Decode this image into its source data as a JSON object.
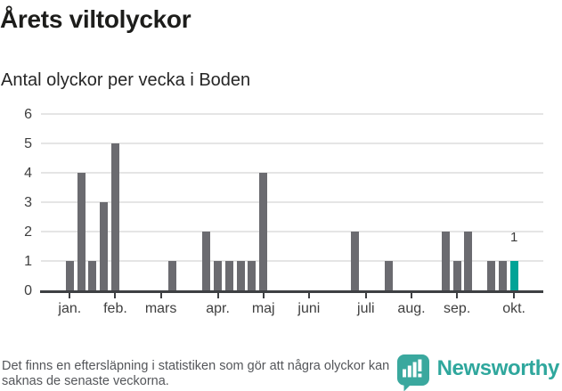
{
  "header": {
    "title": "Årets viltolyckor",
    "subtitle": "Antal olyckor per vecka i Boden"
  },
  "chart_data": {
    "type": "bar",
    "x_unit": "week",
    "title": "Årets viltolyckor",
    "subtitle": "Antal olyckor per vecka i Boden",
    "weeks": [
      1,
      2,
      3,
      4,
      5,
      6,
      7,
      8,
      9,
      10,
      11,
      12,
      13,
      14,
      15,
      16,
      17,
      18,
      19,
      20,
      21,
      22,
      23,
      24,
      25,
      26,
      27,
      28,
      29,
      30,
      31,
      32,
      33,
      34,
      35,
      36,
      37,
      38,
      39,
      40
    ],
    "values": [
      1,
      4,
      1,
      3,
      5,
      0,
      0,
      0,
      0,
      1,
      0,
      0,
      2,
      1,
      1,
      1,
      1,
      4,
      0,
      0,
      0,
      0,
      0,
      0,
      0,
      2,
      0,
      0,
      1,
      0,
      0,
      0,
      0,
      2,
      1,
      2,
      0,
      1,
      1,
      1
    ],
    "highlight_week": 40,
    "highlight_value_label": "1",
    "ylim": [
      0,
      6
    ],
    "yticks": [
      0,
      1,
      2,
      3,
      4,
      5,
      6
    ],
    "xticks": [
      {
        "week": 1,
        "label": "jan."
      },
      {
        "week": 5,
        "label": "feb."
      },
      {
        "week": 9,
        "label": "mars"
      },
      {
        "week": 14,
        "label": "apr."
      },
      {
        "week": 18,
        "label": "maj"
      },
      {
        "week": 22,
        "label": "juni"
      },
      {
        "week": 27,
        "label": "juli"
      },
      {
        "week": 31,
        "label": "aug."
      },
      {
        "week": 35,
        "label": "sep."
      },
      {
        "week": 40,
        "label": "okt."
      }
    ],
    "grid": "horizontal",
    "legend": "none",
    "colors": {
      "bar": "#6b6b70",
      "highlight": "#00a396"
    }
  },
  "footer": {
    "note": "Det finns en eftersläpning i statistiken som gör att några olyckor kan saknas de senaste veckorna.",
    "brand": "Newsworthy",
    "brand_color": "#2fa79d"
  }
}
